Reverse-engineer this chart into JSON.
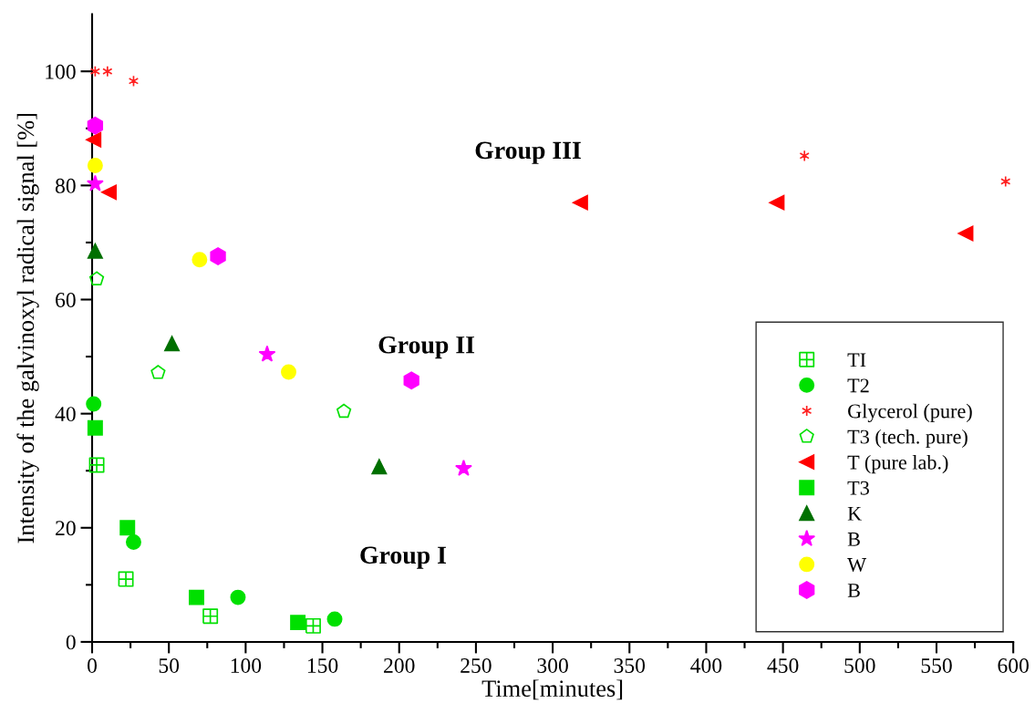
{
  "chart_data": {
    "type": "scatter",
    "xlabel": "Time[minutes]",
    "ylabel": "Intensity of the galvinoxyl radical signal [%]",
    "xlim": [
      0,
      600
    ],
    "xticks": [
      0,
      {
        "value": 25,
        "label": null
      },
      50,
      {
        "value": 75,
        "label": null
      },
      100,
      {
        "value": 125,
        "label": null
      },
      150,
      {
        "value": 175,
        "label": null
      },
      200,
      {
        "value": 225,
        "label": null
      },
      250,
      {
        "value": 275,
        "label": null
      },
      300,
      {
        "value": 325,
        "label": null
      },
      350,
      {
        "value": 375,
        "label": null
      },
      400,
      {
        "value": 425,
        "label": null
      },
      450,
      {
        "value": 475,
        "label": null
      },
      500,
      {
        "value": 525,
        "label": null
      },
      550,
      {
        "value": 575,
        "label": null
      },
      600
    ],
    "ylim": [
      0,
      110
    ],
    "yticks": [
      0,
      {
        "value": 10,
        "label": null
      },
      20,
      {
        "value": 30,
        "label": null
      },
      40,
      {
        "value": 50,
        "label": null
      },
      60,
      {
        "value": 70,
        "label": null
      },
      80,
      {
        "value": 90,
        "label": null
      },
      100
    ],
    "grid": false,
    "legend": "lower right",
    "annotations": [
      "Group I",
      "Group II",
      "Group III"
    ],
    "series": [
      {
        "name": "TI",
        "color": "#00e000",
        "x": [
          3,
          22,
          77,
          144
        ],
        "values": [
          31,
          11,
          4.5,
          2.8
        ]
      },
      {
        "name": "T2",
        "color": "#00e000",
        "x": [
          1,
          27,
          95,
          158
        ],
        "values": [
          41.7,
          17.5,
          7.8,
          4
        ]
      },
      {
        "name": "Glycerol (pure)",
        "color": "#ff2020",
        "x": [
          2,
          10,
          27,
          464,
          595
        ],
        "values": [
          100,
          100,
          98.3,
          85.2,
          80.7
        ]
      },
      {
        "name": "T3 (tech. pure)",
        "color": "#00e000",
        "x": [
          3,
          43,
          164
        ],
        "values": [
          63.6,
          47.2,
          40.4
        ]
      },
      {
        "name": "T (pure lab.)",
        "color": "#ff0000",
        "x": [
          1,
          11,
          318,
          446,
          569
        ],
        "values": [
          88,
          78.8,
          77,
          77,
          71.6
        ]
      },
      {
        "name": "T3",
        "color": "#00e000",
        "x": [
          2,
          23,
          68,
          134
        ],
        "values": [
          37.5,
          20,
          7.8,
          3.4
        ]
      },
      {
        "name": "K",
        "color": "#007000",
        "x": [
          2,
          52,
          187
        ],
        "values": [
          68.5,
          52.3,
          30.7
        ]
      },
      {
        "name": "B",
        "color": "#ff00ff",
        "x": [
          2,
          114,
          242
        ],
        "values": [
          80.3,
          50.4,
          30.4
        ]
      },
      {
        "name": "W",
        "color": "#ffff00",
        "x": [
          2,
          70,
          128
        ],
        "values": [
          83.5,
          67,
          47.3
        ]
      },
      {
        "name": "B",
        "color": "#ff00ff",
        "x": [
          2,
          82,
          208
        ],
        "values": [
          90.5,
          67.6,
          45.8
        ]
      }
    ]
  }
}
